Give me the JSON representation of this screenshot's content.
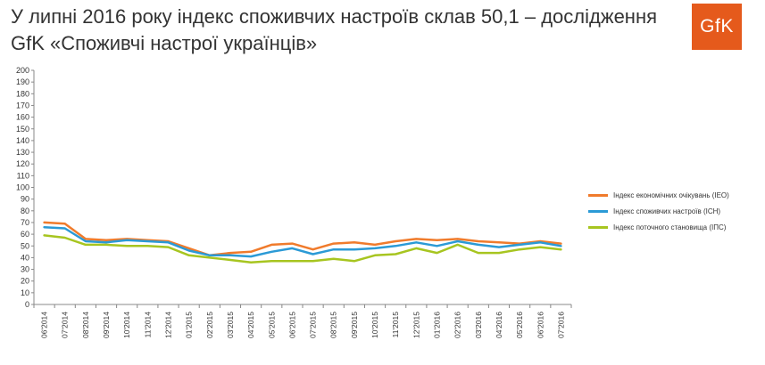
{
  "header": {
    "title": "У липні 2016 року індекс споживчих настроїв склав 50,1 – дослідження GfK «Споживчі настрої українців»",
    "logo_text": "GfK"
  },
  "chart_data": {
    "type": "line",
    "title": "",
    "xlabel": "",
    "ylabel": "",
    "ylim": [
      0,
      200
    ],
    "y_ticks": [
      0,
      10,
      20,
      30,
      40,
      50,
      60,
      70,
      80,
      90,
      100,
      110,
      120,
      130,
      140,
      150,
      160,
      170,
      180,
      190,
      200
    ],
    "grid": false,
    "legend_position": "right",
    "categories": [
      "06'2014",
      "07'2014",
      "08'2014",
      "09'2014",
      "10'2014",
      "11'2014",
      "12'2014",
      "01'2015",
      "02'2015",
      "03'2015",
      "04'2015",
      "05'2015",
      "06'2015",
      "07'2015",
      "08'2015",
      "09'2015",
      "10'2015",
      "11'2015",
      "12'2015",
      "01'2016",
      "02'2016",
      "03'2016",
      "04'2016",
      "05'2016",
      "06'2016",
      "07'2016"
    ],
    "series": [
      {
        "name": "Індекс економічних очікувань (ІЕО)",
        "color": "#f07b2c",
        "values": [
          70,
          69,
          56,
          55,
          56,
          55,
          54,
          48,
          42,
          44,
          45,
          51,
          52,
          47,
          52,
          53,
          51,
          54,
          56,
          55,
          56,
          54,
          53,
          52,
          54,
          52
        ]
      },
      {
        "name": "Індекс споживчих настроїв (ІСН)",
        "color": "#2b9ad6",
        "values": [
          66,
          65,
          54,
          53,
          55,
          54,
          53,
          46,
          42,
          42,
          41,
          45,
          48,
          43,
          47,
          47,
          48,
          50,
          53,
          50,
          54,
          51,
          49,
          51,
          53,
          50
        ]
      },
      {
        "name": "Індекс поточного становища (ІПС)",
        "color": "#a7c520",
        "values": [
          59,
          57,
          51,
          51,
          50,
          50,
          49,
          42,
          40,
          38,
          36,
          37,
          37,
          37,
          39,
          37,
          42,
          43,
          48,
          44,
          51,
          44,
          44,
          47,
          49,
          47
        ]
      }
    ]
  }
}
